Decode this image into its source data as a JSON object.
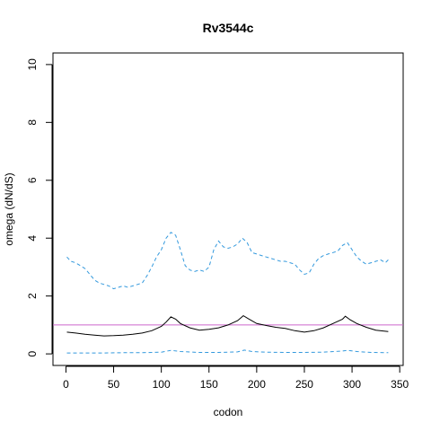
{
  "chart_data": {
    "type": "line",
    "title": "Rv3544c",
    "xlabel": "codon",
    "ylabel": "omega (dN/dS)",
    "xlim": [
      -13.6,
      353.6
    ],
    "ylim": [
      -0.4,
      10.4
    ],
    "x_ticks": [
      0,
      50,
      100,
      150,
      200,
      250,
      300,
      350
    ],
    "y_ticks": [
      0,
      2,
      4,
      6,
      8,
      10
    ],
    "grid": false,
    "legend": "none",
    "reference_line": {
      "y": 1,
      "color": "#cc66cc"
    },
    "series": [
      {
        "style": "solid",
        "color": "#000000",
        "points": [
          [
            1,
            0.75
          ],
          [
            10,
            0.72
          ],
          [
            20,
            0.68
          ],
          [
            30,
            0.65
          ],
          [
            40,
            0.62
          ],
          [
            50,
            0.63
          ],
          [
            60,
            0.65
          ],
          [
            70,
            0.68
          ],
          [
            80,
            0.72
          ],
          [
            90,
            0.8
          ],
          [
            100,
            0.95
          ],
          [
            105,
            1.1
          ],
          [
            110,
            1.28
          ],
          [
            115,
            1.2
          ],
          [
            120,
            1.05
          ],
          [
            130,
            0.9
          ],
          [
            140,
            0.82
          ],
          [
            150,
            0.85
          ],
          [
            160,
            0.9
          ],
          [
            170,
            1.0
          ],
          [
            180,
            1.15
          ],
          [
            186,
            1.32
          ],
          [
            192,
            1.2
          ],
          [
            200,
            1.05
          ],
          [
            210,
            0.98
          ],
          [
            220,
            0.92
          ],
          [
            230,
            0.88
          ],
          [
            240,
            0.8
          ],
          [
            250,
            0.75
          ],
          [
            260,
            0.8
          ],
          [
            270,
            0.9
          ],
          [
            280,
            1.05
          ],
          [
            290,
            1.2
          ],
          [
            293,
            1.3
          ],
          [
            298,
            1.18
          ],
          [
            305,
            1.05
          ],
          [
            315,
            0.92
          ],
          [
            325,
            0.82
          ],
          [
            338,
            0.77
          ]
        ]
      },
      {
        "style": "dashed",
        "color": "#3399dd",
        "points": [
          [
            1,
            3.35
          ],
          [
            5,
            3.2
          ],
          [
            10,
            3.15
          ],
          [
            15,
            3.05
          ],
          [
            20,
            2.95
          ],
          [
            25,
            2.75
          ],
          [
            30,
            2.55
          ],
          [
            35,
            2.45
          ],
          [
            40,
            2.4
          ],
          [
            45,
            2.35
          ],
          [
            50,
            2.25
          ],
          [
            55,
            2.3
          ],
          [
            60,
            2.35
          ],
          [
            65,
            2.3
          ],
          [
            70,
            2.35
          ],
          [
            75,
            2.4
          ],
          [
            80,
            2.45
          ],
          [
            85,
            2.7
          ],
          [
            90,
            3.0
          ],
          [
            95,
            3.35
          ],
          [
            100,
            3.6
          ],
          [
            105,
            4.0
          ],
          [
            110,
            4.2
          ],
          [
            115,
            4.1
          ],
          [
            120,
            3.6
          ],
          [
            125,
            3.05
          ],
          [
            130,
            2.9
          ],
          [
            135,
            2.85
          ],
          [
            140,
            2.9
          ],
          [
            145,
            2.85
          ],
          [
            150,
            3.0
          ],
          [
            155,
            3.6
          ],
          [
            160,
            3.9
          ],
          [
            165,
            3.7
          ],
          [
            170,
            3.65
          ],
          [
            175,
            3.7
          ],
          [
            180,
            3.8
          ],
          [
            185,
            4.0
          ],
          [
            190,
            3.85
          ],
          [
            195,
            3.5
          ],
          [
            200,
            3.45
          ],
          [
            205,
            3.4
          ],
          [
            210,
            3.35
          ],
          [
            215,
            3.3
          ],
          [
            220,
            3.25
          ],
          [
            225,
            3.2
          ],
          [
            230,
            3.2
          ],
          [
            235,
            3.15
          ],
          [
            240,
            3.1
          ],
          [
            245,
            2.9
          ],
          [
            250,
            2.75
          ],
          [
            255,
            2.8
          ],
          [
            260,
            3.1
          ],
          [
            265,
            3.3
          ],
          [
            270,
            3.4
          ],
          [
            275,
            3.45
          ],
          [
            280,
            3.5
          ],
          [
            285,
            3.55
          ],
          [
            290,
            3.75
          ],
          [
            295,
            3.85
          ],
          [
            300,
            3.6
          ],
          [
            305,
            3.35
          ],
          [
            310,
            3.2
          ],
          [
            315,
            3.1
          ],
          [
            320,
            3.15
          ],
          [
            325,
            3.2
          ],
          [
            330,
            3.25
          ],
          [
            335,
            3.15
          ],
          [
            338,
            3.25
          ]
        ]
      },
      {
        "style": "dashed",
        "color": "#3399dd",
        "points": [
          [
            1,
            0.03
          ],
          [
            20,
            0.03
          ],
          [
            40,
            0.03
          ],
          [
            60,
            0.04
          ],
          [
            80,
            0.04
          ],
          [
            100,
            0.06
          ],
          [
            110,
            0.12
          ],
          [
            120,
            0.08
          ],
          [
            140,
            0.05
          ],
          [
            160,
            0.05
          ],
          [
            180,
            0.07
          ],
          [
            187,
            0.13
          ],
          [
            195,
            0.08
          ],
          [
            210,
            0.06
          ],
          [
            230,
            0.05
          ],
          [
            250,
            0.05
          ],
          [
            270,
            0.06
          ],
          [
            290,
            0.1
          ],
          [
            295,
            0.12
          ],
          [
            305,
            0.08
          ],
          [
            320,
            0.05
          ],
          [
            338,
            0.04
          ]
        ]
      }
    ]
  }
}
